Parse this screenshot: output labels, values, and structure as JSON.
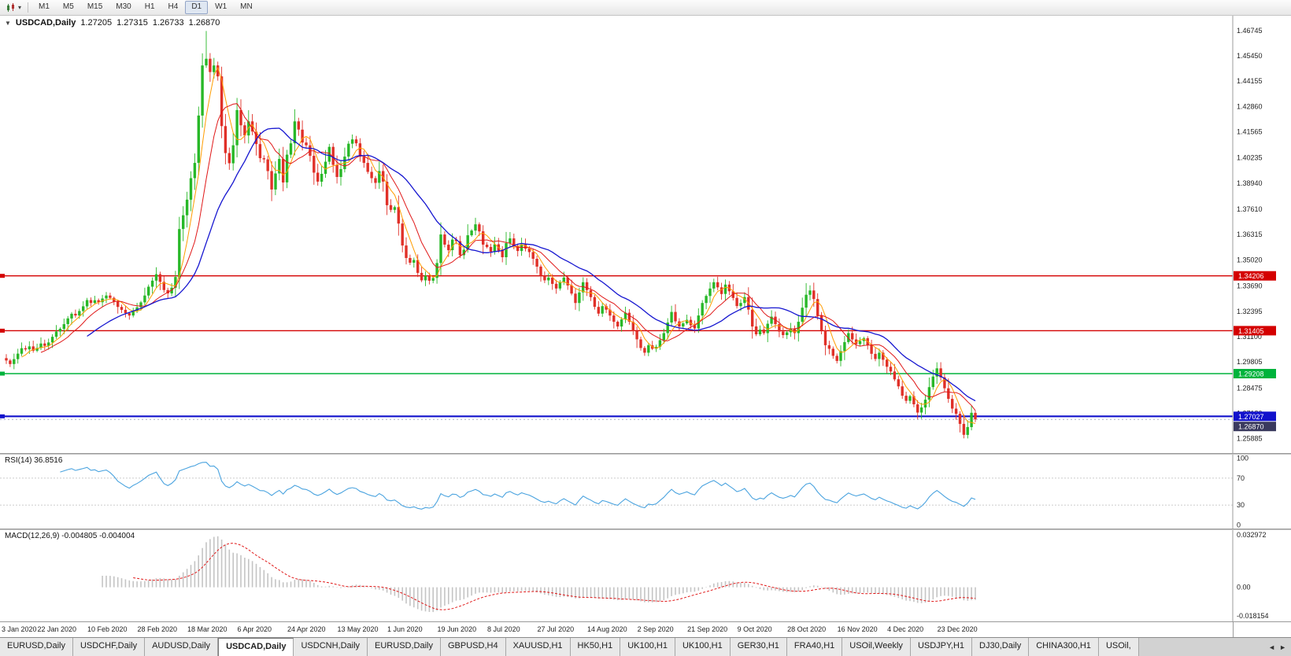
{
  "toolbar": {
    "timeframes": [
      "M1",
      "M5",
      "M15",
      "M30",
      "H1",
      "H4",
      "D1",
      "W1",
      "MN"
    ],
    "active_timeframe": "D1"
  },
  "icons": {
    "collapse": "▼",
    "caret": "▾",
    "scroll_left": "◄",
    "scroll_right": "►"
  },
  "chart": {
    "title_symbol": "USDCAD,Daily",
    "quote": {
      "open": "1.27205",
      "high": "1.27315",
      "low": "1.26733",
      "close": "1.26870"
    },
    "last_price_label": "1.26870",
    "price_axis_labels": [
      "1.46745",
      "1.45450",
      "1.44155",
      "1.42860",
      "1.41565",
      "1.40235",
      "1.38940",
      "1.37610",
      "1.36315",
      "1.35020",
      "1.33690",
      "1.32395",
      "1.31100",
      "1.29805",
      "1.28475",
      "1.27180",
      "1.25885"
    ],
    "hlines": [
      {
        "value": 1.34206,
        "label": "1.34206",
        "color": "#d40000",
        "width": 1.4
      },
      {
        "value": 1.31405,
        "label": "1.31405",
        "color": "#d40000",
        "width": 1.4
      },
      {
        "value": 1.29208,
        "label": "1.29208",
        "color": "#00b33c",
        "width": 1.6
      },
      {
        "value": 1.27027,
        "label": "1.27027",
        "color": "#1212cc",
        "width": 2.2
      }
    ],
    "colors": {
      "up": "#28b828",
      "down": "#e03028",
      "ma_fast": "#ff9c00",
      "ma_mid": "#e01818",
      "ma_slow": "#1616d0"
    }
  },
  "rsi": {
    "label": "RSI(14) 36.8516",
    "period": 14,
    "current": 36.8516,
    "levels": [
      70,
      30
    ],
    "axis_labels": [
      "100",
      "70",
      "30",
      "0"
    ],
    "display_range": [
      -5,
      105
    ],
    "color": "#4aa3df"
  },
  "macd": {
    "label": "MACD(12,26,9) -0.004805 -0.004004",
    "fast": 12,
    "slow": 26,
    "signal": 9,
    "current": [
      -0.004805,
      -0.004004
    ],
    "axis_labels": [
      "0.032972",
      "0.00",
      "-0.018154"
    ],
    "display_range": [
      -0.0215,
      0.036
    ],
    "hist_color": "#c4c4c4",
    "signal_color": "#e01818"
  },
  "tabs": {
    "active_index": 3,
    "items": [
      "EURUSD,Daily",
      "USDCHF,Daily",
      "AUDUSD,Daily",
      "USDCAD,Daily",
      "USDCNH,Daily",
      "EURUSD,Daily",
      "GBPUSD,H4",
      "XAUUSD,H1",
      "HK50,H1",
      "UK100,H1",
      "UK100,H1",
      "GER30,H1",
      "FRA40,H1",
      "USOil,Weekly",
      "USDJPY,H1",
      "DJ30,Daily",
      "CHINA300,H1",
      "USOil,"
    ]
  },
  "chart_data": {
    "type": "candlestick",
    "symbol": "USDCAD",
    "timeframe": "Daily",
    "x_labels": [
      "3 Jan 2020",
      "22 Jan 2020",
      "10 Feb 2020",
      "28 Feb 2020",
      "18 Mar 2020",
      "6 Apr 2020",
      "24 Apr 2020",
      "13 May 2020",
      "1 Jun 2020",
      "19 Jun 2020",
      "8 Jul 2020",
      "27 Jul 2020",
      "14 Aug 2020",
      "2 Sep 2020",
      "21 Sep 2020",
      "9 Oct 2020",
      "28 Oct 2020",
      "16 Nov 2020",
      "4 Dec 2020",
      "23 Dec 2020"
    ],
    "bars_per_label": 13,
    "price_range": [
      1.2515,
      1.475
    ],
    "closes": [
      1.2988,
      1.297,
      1.2995,
      1.3023,
      1.3051,
      1.3045,
      1.306,
      1.3038,
      1.3052,
      1.3075,
      1.3063,
      1.308,
      1.3109,
      1.3136,
      1.315,
      1.3174,
      1.3203,
      1.3227,
      1.3218,
      1.3241,
      1.3265,
      1.3297,
      1.3282,
      1.3296,
      1.3286,
      1.3305,
      1.332,
      1.3308,
      1.3289,
      1.3262,
      1.3247,
      1.323,
      1.3218,
      1.3242,
      1.326,
      1.3285,
      1.332,
      1.3365,
      1.3396,
      1.3429,
      1.339,
      1.3348,
      1.3331,
      1.336,
      1.3415,
      1.366,
      1.373,
      1.381,
      1.392,
      1.3998,
      1.424,
      1.4496,
      1.453,
      1.4462,
      1.4496,
      1.444,
      1.4186,
      1.4048,
      1.3996,
      1.4088,
      1.4268,
      1.419,
      1.4138,
      1.421,
      1.4158,
      1.4094,
      1.4022,
      1.4016,
      1.3956,
      1.3862,
      1.3944,
      1.4018,
      1.3898,
      1.404,
      1.4098,
      1.421,
      1.4168,
      1.4102,
      1.4088,
      1.4034,
      1.3948,
      1.3902,
      1.3942,
      1.4004,
      1.408,
      1.3988,
      1.3926,
      1.3966,
      1.403,
      1.4096,
      1.4118,
      1.4098,
      1.403,
      1.3998,
      1.3952,
      1.392,
      1.3896,
      1.3956,
      1.3902,
      1.3782,
      1.3758,
      1.3772,
      1.3688,
      1.3576,
      1.3512,
      1.3488,
      1.3502,
      1.3436,
      1.3398,
      1.3422,
      1.3396,
      1.341,
      1.3486,
      1.3632,
      1.358,
      1.3552,
      1.3606,
      1.3598,
      1.3526,
      1.3554,
      1.3628,
      1.3652,
      1.3684,
      1.3648,
      1.358,
      1.3568,
      1.3544,
      1.3582,
      1.355,
      1.3516,
      1.3588,
      1.3612,
      1.3574,
      1.3548,
      1.3582,
      1.356,
      1.3542,
      1.3508,
      1.3468,
      1.3422,
      1.3398,
      1.3412,
      1.338,
      1.3356,
      1.3388,
      1.3412,
      1.3372,
      1.333,
      1.3282,
      1.3336,
      1.3388,
      1.3348,
      1.3312,
      1.3262,
      1.3228,
      1.3266,
      1.3248,
      1.3218,
      1.3186,
      1.3162,
      1.3198,
      1.3232,
      1.3186,
      1.3138,
      1.3096,
      1.3052,
      1.3028,
      1.3066,
      1.3048,
      1.3058,
      1.3092,
      1.3128,
      1.3182,
      1.3236,
      1.3188,
      1.3162,
      1.3178,
      1.3196,
      1.3168,
      1.3152,
      1.3218,
      1.3282,
      1.3318,
      1.3356,
      1.3388,
      1.3362,
      1.3328,
      1.3376,
      1.3342,
      1.3308,
      1.3266,
      1.3282,
      1.3312,
      1.3248,
      1.3162,
      1.3122,
      1.3146,
      1.3128,
      1.3176,
      1.3212,
      1.3174,
      1.3136,
      1.3118,
      1.3132,
      1.3152,
      1.3128,
      1.3186,
      1.3258,
      1.3324,
      1.3346,
      1.3302,
      1.3218,
      1.3142,
      1.3066,
      1.3048,
      1.3012,
      1.2986,
      1.3036,
      1.3082,
      1.3128,
      1.3096,
      1.3072,
      1.3088,
      1.3102,
      1.3066,
      1.3022,
      1.2996,
      1.3028,
      1.2992,
      1.2956,
      1.2932,
      1.2892,
      1.2856,
      1.2808,
      1.2782,
      1.2806,
      1.2764,
      1.2722,
      1.2748,
      1.2788,
      1.2852,
      1.2906,
      1.2948,
      1.2902,
      1.2846,
      1.2792,
      1.2742,
      1.2716,
      1.2664,
      1.2608,
      1.2648,
      1.2721,
      1.2687
    ],
    "quote_values": [
      1.27205,
      1.27315,
      1.26733,
      1.2687
    ],
    "special": {
      "peak_index": 52,
      "peak_high": 1.4672,
      "trough_index": 249,
      "trough_low": 1.259
    },
    "ma_periods": {
      "fast": 5,
      "mid": 10,
      "slow": 22
    },
    "hlines": [
      1.34206,
      1.31405,
      1.29208,
      1.27027
    ]
  }
}
